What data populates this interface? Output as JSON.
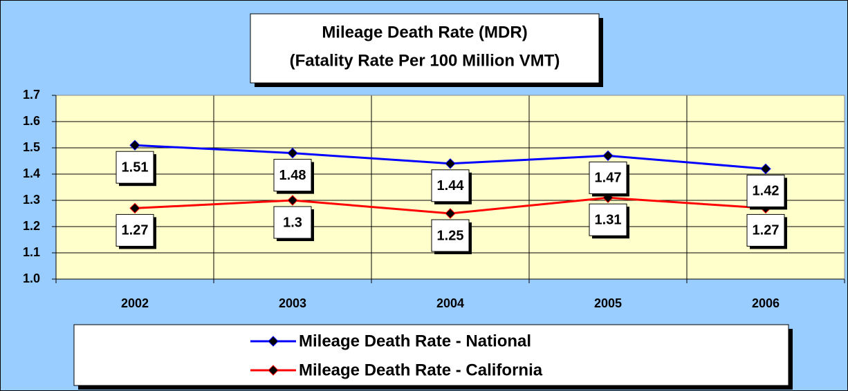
{
  "chart_data": {
    "type": "line",
    "title": "Mileage Death Rate (MDR)",
    "subtitle": "(Fatality Rate Per 100 Million VMT)",
    "categories": [
      "2002",
      "2003",
      "2004",
      "2005",
      "2006"
    ],
    "series": [
      {
        "name": "Mileage Death Rate - National",
        "color": "#0000ff",
        "values": [
          1.51,
          1.48,
          1.44,
          1.47,
          1.42
        ]
      },
      {
        "name": "Mileage Death Rate - California",
        "color": "#ff0000",
        "values": [
          1.27,
          1.3,
          1.25,
          1.31,
          1.27
        ]
      }
    ],
    "ylim": [
      1.0,
      1.7
    ],
    "yticks": [
      {
        "value": 1.0,
        "label": "1.0"
      },
      1.1,
      1.2,
      1.3,
      1.4,
      1.5,
      1.6,
      1.7
    ],
    "grid": true,
    "legend": "bottom"
  }
}
